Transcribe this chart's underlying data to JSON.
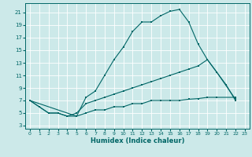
{
  "xlabel": "Humidex (Indice chaleur)",
  "bg_color": "#cce9e9",
  "line_color": "#006666",
  "grid_color": "#ffffff",
  "xlim": [
    -0.5,
    23.5
  ],
  "ylim": [
    2.5,
    22.5
  ],
  "xticks": [
    0,
    1,
    2,
    3,
    4,
    5,
    6,
    7,
    8,
    9,
    10,
    11,
    12,
    13,
    14,
    15,
    16,
    17,
    18,
    19,
    20,
    21,
    22,
    23
  ],
  "yticks": [
    3,
    5,
    7,
    9,
    11,
    13,
    15,
    17,
    19,
    21
  ],
  "curve1_x": [
    0,
    1,
    2,
    3,
    4,
    5,
    6,
    7,
    8,
    9,
    10,
    11,
    12,
    13,
    14,
    15,
    16,
    17,
    18,
    19,
    20,
    21,
    22
  ],
  "curve1_y": [
    7,
    6,
    5,
    5,
    4.5,
    4.5,
    7.5,
    8.5,
    11,
    13.5,
    15.5,
    18,
    19.5,
    19.5,
    20.5,
    21.2,
    21.5,
    19.5,
    16,
    13.5,
    11.5,
    9.5,
    7
  ],
  "curve2_x": [
    0,
    1,
    2,
    3,
    4,
    5,
    6,
    7,
    8,
    9,
    10,
    11,
    12,
    13,
    14,
    15,
    16,
    17,
    18,
    19,
    20,
    22
  ],
  "curve2_y": [
    7,
    6,
    5,
    5,
    4.5,
    5,
    6.5,
    7,
    7.5,
    8,
    8.5,
    9,
    9.5,
    10,
    10.5,
    11,
    11.5,
    12,
    12.5,
    13.5,
    11.5,
    7.2
  ],
  "curve3_x": [
    0,
    5,
    6,
    7,
    8,
    9,
    10,
    11,
    12,
    13,
    14,
    15,
    16,
    17,
    18,
    19,
    20,
    22
  ],
  "curve3_y": [
    7,
    4.5,
    5,
    5.5,
    5.5,
    6,
    6,
    6.5,
    6.5,
    7,
    7,
    7,
    7,
    7.2,
    7.3,
    7.5,
    7.5,
    7.5
  ]
}
